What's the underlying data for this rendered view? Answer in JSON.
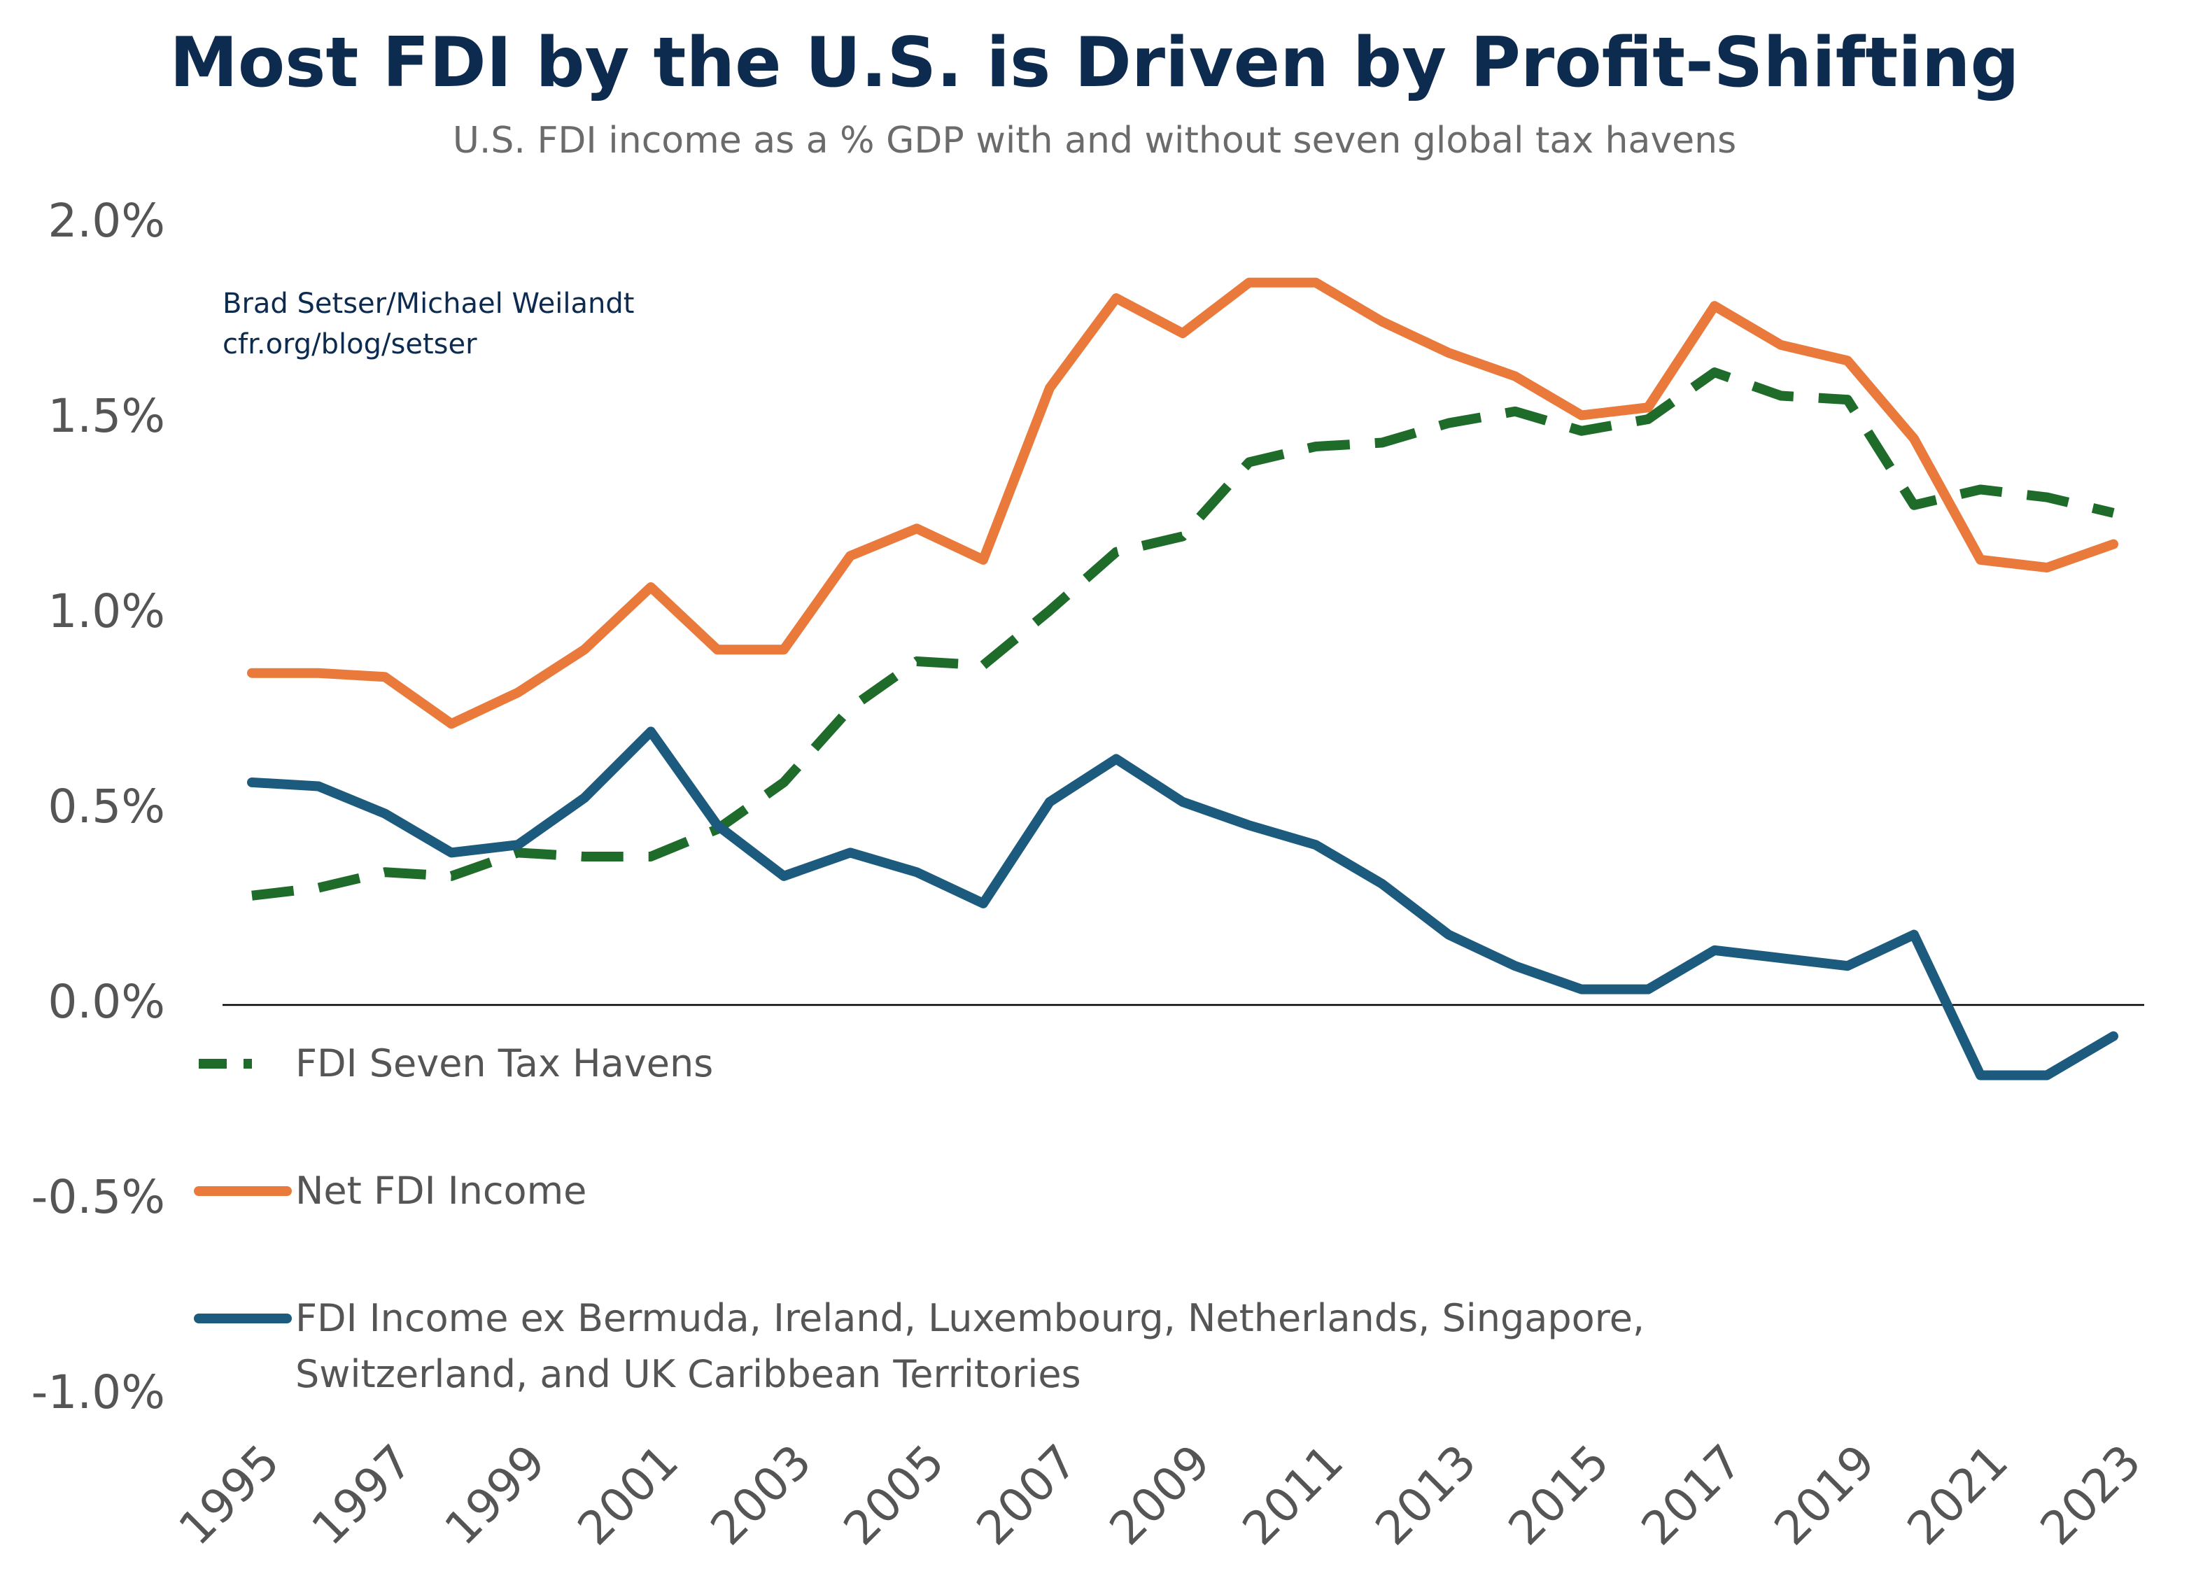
{
  "chart_data": {
    "type": "line",
    "title": "Most FDI by the U.S. is Driven by Profit-Shifting",
    "subtitle": "U.S. FDI income as a % GDP with and without seven global tax havens",
    "annotations": [
      "Brad Setser/Michael Weilandt",
      "cfr.org/blog/setser"
    ],
    "x": [
      1995,
      1996,
      1997,
      1998,
      1999,
      2000,
      2001,
      2002,
      2003,
      2004,
      2005,
      2006,
      2007,
      2008,
      2009,
      2010,
      2011,
      2012,
      2013,
      2014,
      2015,
      2016,
      2017,
      2018,
      2019,
      2020,
      2021,
      2022,
      2023
    ],
    "xlim": [
      1995,
      2023
    ],
    "xticks": [
      1995,
      1997,
      1999,
      2001,
      2003,
      2005,
      2007,
      2009,
      2011,
      2013,
      2015,
      2017,
      2019,
      2021,
      2023
    ],
    "ylim": [
      -1.0,
      2.0
    ],
    "yticks": [
      {
        "value": -1.0,
        "label": "-1.0%"
      },
      {
        "value": -0.5,
        "label": "-0.5%"
      },
      {
        "value": 0,
        "label": "0.0%"
      },
      {
        "value": 0.5,
        "label": "0.5%"
      },
      {
        "value": 1.0,
        "label": "1.0%"
      },
      {
        "value": 1.5,
        "label": "1.5%"
      },
      {
        "value": 2.0,
        "label": "2.0%"
      }
    ],
    "grid": false,
    "series": [
      {
        "name": "FDI Seven Tax Havens",
        "color": "#1e6b2a",
        "dashed": true,
        "values": [
          0.28,
          0.3,
          0.34,
          0.33,
          0.39,
          0.38,
          0.38,
          0.45,
          0.57,
          0.76,
          0.88,
          0.87,
          1.01,
          1.16,
          1.2,
          1.39,
          1.43,
          1.44,
          1.49,
          1.52,
          1.47,
          1.5,
          1.62,
          1.56,
          1.55,
          1.28,
          1.32,
          1.3,
          1.26
        ]
      },
      {
        "name": "Net FDI Income",
        "color": "#ea7a3b",
        "dashed": false,
        "values": [
          0.85,
          0.85,
          0.84,
          0.72,
          0.8,
          0.91,
          1.07,
          0.91,
          0.91,
          1.15,
          1.22,
          1.14,
          1.58,
          1.81,
          1.72,
          1.85,
          1.85,
          1.75,
          1.67,
          1.61,
          1.51,
          1.53,
          1.79,
          1.69,
          1.65,
          1.45,
          1.14,
          1.12,
          1.18
        ]
      },
      {
        "name": "FDI Income ex Bermuda, Ireland, Luxembourg, Netherlands, Singapore, Switzerland, and UK Caribbean Territories",
        "color": "#1c5b7e",
        "dashed": false,
        "values": [
          0.57,
          0.56,
          0.49,
          0.39,
          0.41,
          0.53,
          0.7,
          0.46,
          0.33,
          0.39,
          0.34,
          0.26,
          0.52,
          0.63,
          0.52,
          0.46,
          0.41,
          0.31,
          0.18,
          0.1,
          0.04,
          0.04,
          0.14,
          0.12,
          0.1,
          0.18,
          -0.18,
          -0.18,
          -0.08
        ]
      }
    ]
  }
}
